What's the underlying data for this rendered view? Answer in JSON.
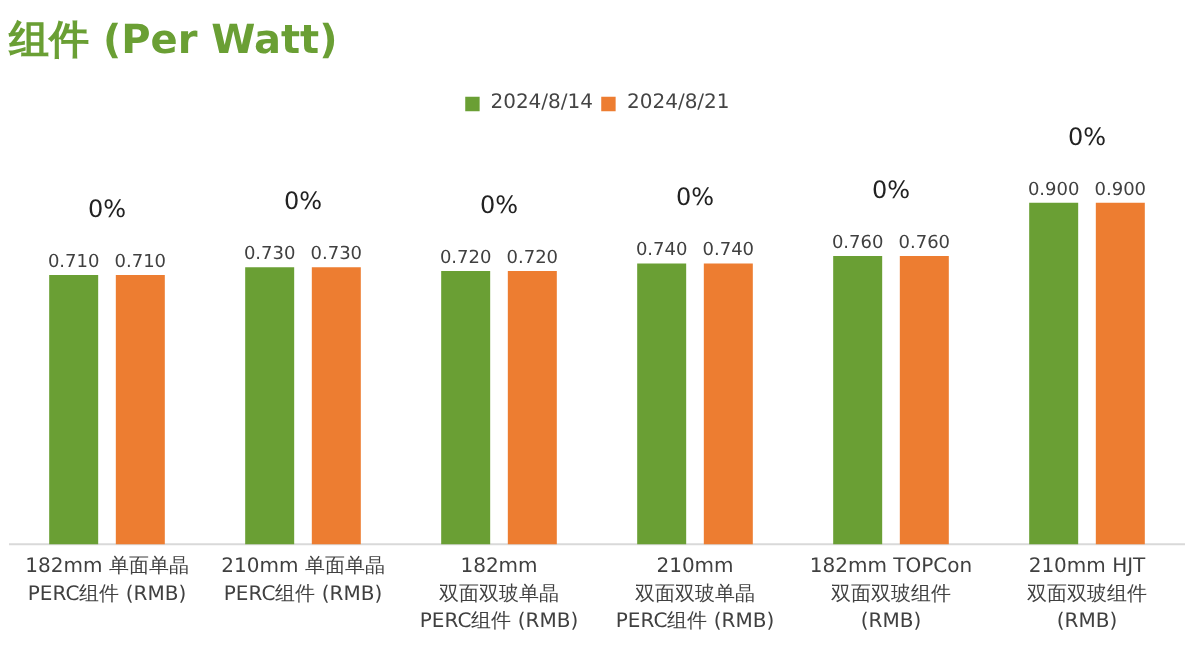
{
  "chart_data": {
    "type": "bar",
    "title": "组件 (Per Watt)",
    "categories": [
      "182mm 单面单晶\nPERC组件 (RMB)",
      "210mm 单面单晶\nPERC组件 (RMB)",
      "182mm 双面双玻单晶\nPERC组件 (RMB)",
      "210mm 双面双玻单晶\nPERC组件 (RMB)",
      "182mm TOPCon\n双面双玻组件 (RMB)",
      "210mm HJT\n双面双玻组件 (RMB)"
    ],
    "series": [
      {
        "name": "2024/8/14",
        "color": "#6a9f34",
        "values": [
          0.71,
          0.73,
          0.72,
          0.74,
          0.76,
          0.9
        ],
        "value_labels": [
          "0.710",
          "0.730",
          "0.720",
          "0.740",
          "0.760",
          "0.900"
        ]
      },
      {
        "name": "2024/8/21",
        "color": "#ed7d31",
        "values": [
          0.71,
          0.73,
          0.72,
          0.74,
          0.76,
          0.9
        ],
        "value_labels": [
          "0.710",
          "0.730",
          "0.720",
          "0.740",
          "0.760",
          "0.900"
        ]
      }
    ],
    "annotations": [
      "0%",
      "0%",
      "0%",
      "0%",
      "0%",
      "0%"
    ],
    "legend": "top",
    "grid": false
  }
}
